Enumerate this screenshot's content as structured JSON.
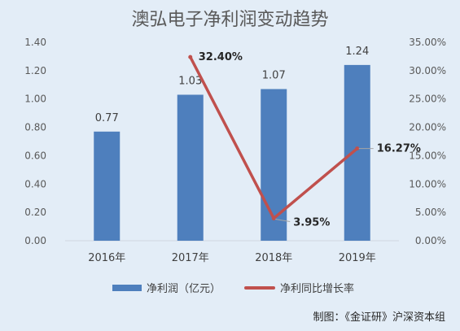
{
  "title": "澳弘电子净利润变动趋势",
  "legend": {
    "bar_label": "净利润（亿元）",
    "line_label": "净利同比增长率"
  },
  "credit": "制图：《金证研》沪深资本组",
  "colors": {
    "bar": "#4e7fbd",
    "line": "#c0504d",
    "background": "#e3edf7"
  },
  "chart_data": {
    "type": "bar",
    "categories": [
      "2016年",
      "2017年",
      "2018年",
      "2019年"
    ],
    "series": [
      {
        "name": "净利润（亿元）",
        "type": "bar",
        "axis": "left",
        "values": [
          0.77,
          1.03,
          1.07,
          1.24
        ],
        "labels": [
          "0.77",
          "1.03",
          "1.07",
          "1.24"
        ]
      },
      {
        "name": "净利同比增长率",
        "type": "line",
        "axis": "right",
        "values": [
          null,
          32.4,
          3.95,
          16.27
        ],
        "labels": [
          null,
          "32.40%",
          "3.95%",
          "16.27%"
        ]
      }
    ],
    "y_left": {
      "lim": [
        0,
        1.4
      ],
      "ticks": [
        "0.00",
        "0.20",
        "0.40",
        "0.60",
        "0.80",
        "1.00",
        "1.20",
        "1.40"
      ]
    },
    "y_right": {
      "lim": [
        0,
        35
      ],
      "ticks": [
        "0.00%",
        "5.00%",
        "10.00%",
        "15.00%",
        "20.00%",
        "25.00%",
        "30.00%",
        "35.00%"
      ]
    },
    "grid": false,
    "legend_position": "bottom"
  }
}
